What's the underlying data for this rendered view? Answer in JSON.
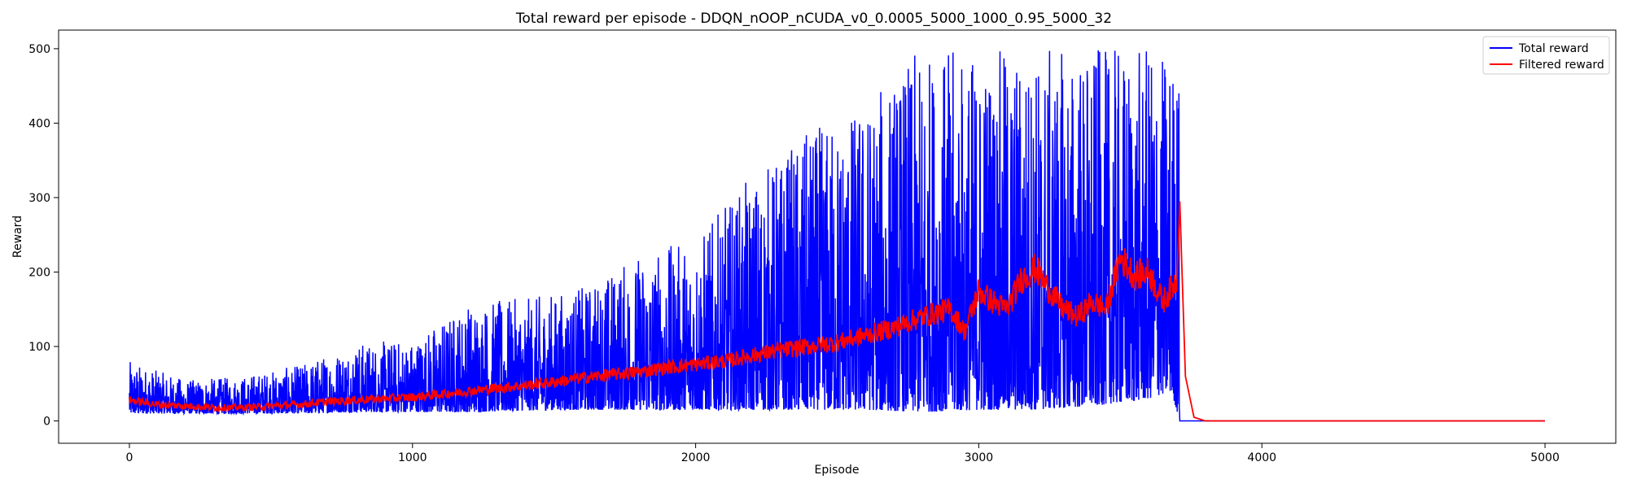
{
  "chart_data": {
    "type": "line",
    "title": "Total reward per episode - DDQN_nOOP_nCUDA_v0_0.0005_5000_1000_0.95_5000_32",
    "xlabel": "Episode",
    "ylabel": "Reward",
    "xlim": [
      -250,
      5250
    ],
    "ylim": [
      -30,
      525
    ],
    "xticks": [
      0,
      1000,
      2000,
      3000,
      4000,
      5000
    ],
    "yticks": [
      0,
      100,
      200,
      300,
      400,
      500
    ],
    "grid": false,
    "legend_position": "top-right",
    "series": [
      {
        "name": "Total reward",
        "color": "#0000ff",
        "description": "noisy per-episode reward",
        "envelope": {
          "x": [
            0,
            200,
            400,
            600,
            800,
            1000,
            1200,
            1400,
            1600,
            1800,
            2000,
            2200,
            2400,
            2600,
            2800,
            3000,
            3200,
            3400,
            3500,
            3600,
            3680,
            3710
          ],
          "low": [
            10,
            10,
            10,
            10,
            12,
            12,
            12,
            14,
            15,
            15,
            15,
            15,
            15,
            15,
            12,
            15,
            15,
            20,
            25,
            30,
            40,
            0
          ],
          "high": [
            80,
            55,
            60,
            75,
            105,
            110,
            160,
            165,
            180,
            225,
            245,
            330,
            390,
            430,
            500,
            500,
            500,
            500,
            500,
            500,
            500,
            500
          ]
        },
        "x_end": 5000,
        "tail_value": 0
      },
      {
        "name": "Filtered reward",
        "color": "#ff0000",
        "x": [
          0,
          100,
          200,
          300,
          400,
          500,
          600,
          700,
          800,
          900,
          1000,
          1100,
          1200,
          1300,
          1400,
          1500,
          1600,
          1700,
          1800,
          1900,
          2000,
          2100,
          2200,
          2300,
          2400,
          2500,
          2600,
          2700,
          2800,
          2900,
          2950,
          3000,
          3050,
          3100,
          3150,
          3200,
          3250,
          3300,
          3350,
          3400,
          3450,
          3500,
          3550,
          3600,
          3650,
          3700,
          3710,
          3730,
          3760,
          3800,
          4000,
          5000
        ],
        "values": [
          28,
          22,
          20,
          18,
          18,
          20,
          22,
          26,
          28,
          30,
          32,
          36,
          40,
          44,
          48,
          52,
          58,
          62,
          66,
          72,
          76,
          80,
          88,
          95,
          100,
          105,
          115,
          125,
          140,
          150,
          120,
          175,
          160,
          150,
          190,
          205,
          175,
          150,
          140,
          160,
          150,
          220,
          195,
          200,
          160,
          190,
          295,
          60,
          5,
          0,
          0,
          0
        ]
      }
    ]
  }
}
